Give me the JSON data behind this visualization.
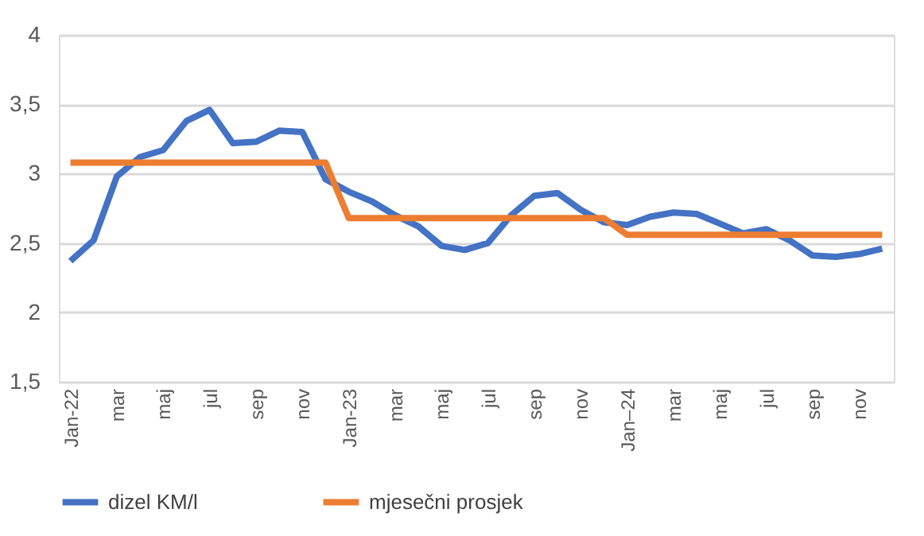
{
  "chart_data": {
    "type": "line",
    "categories": [
      "Jan-22",
      null,
      "mar",
      null,
      "maj",
      null,
      "jul",
      null,
      "sep",
      null,
      "nov",
      null,
      "Jan-23",
      null,
      "mar",
      null,
      "maj",
      null,
      "jul",
      null,
      "sep",
      null,
      "nov",
      null,
      "Jan–24",
      null,
      "mar",
      null,
      "maj",
      null,
      "jul",
      null,
      "sep",
      null,
      "nov",
      null
    ],
    "series": [
      {
        "name": "dizel KM/l",
        "color": "#4472c4",
        "values": [
          2.37,
          2.52,
          2.98,
          3.12,
          3.17,
          3.38,
          3.46,
          3.22,
          3.23,
          3.31,
          3.3,
          2.96,
          2.87,
          2.8,
          2.7,
          2.62,
          2.48,
          2.45,
          2.5,
          2.7,
          2.84,
          2.86,
          2.74,
          2.65,
          2.63,
          2.69,
          2.72,
          2.71,
          2.64,
          2.57,
          2.6,
          2.52,
          2.41,
          2.4,
          2.42,
          2.46
        ]
      },
      {
        "name": "mjesečni prosjek",
        "color": "#ed7d31",
        "values": [
          3.08,
          3.08,
          3.08,
          3.08,
          3.08,
          3.08,
          3.08,
          3.08,
          3.08,
          3.08,
          3.08,
          3.08,
          2.68,
          2.68,
          2.68,
          2.68,
          2.68,
          2.68,
          2.68,
          2.68,
          2.68,
          2.68,
          2.68,
          2.68,
          2.56,
          2.56,
          2.56,
          2.56,
          2.56,
          2.56,
          2.56,
          2.56,
          2.56,
          2.56,
          2.56,
          2.56
        ]
      }
    ],
    "ylim": [
      1.5,
      4
    ],
    "yticks": [
      {
        "value": 1.5,
        "label": "1,5"
      },
      {
        "value": 2,
        "label": "2"
      },
      {
        "value": 2.5,
        "label": "2,5"
      },
      {
        "value": 3,
        "label": "3"
      },
      {
        "value": 3.5,
        "label": "3,5"
      },
      {
        "value": 4,
        "label": "4"
      }
    ],
    "grid": "y",
    "legend": "bottom",
    "marker": "none",
    "line_style": "solid"
  }
}
